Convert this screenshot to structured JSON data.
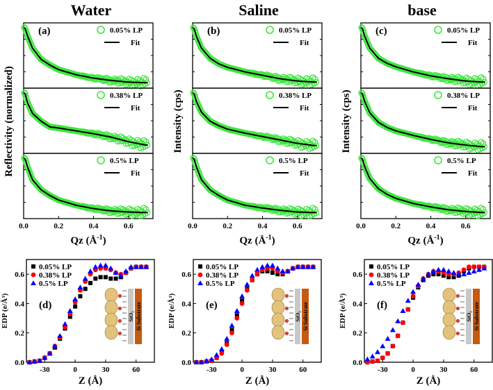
{
  "colors": {
    "green": "#3ee63e",
    "fit": "#000000",
    "s005": "#000000",
    "s038": "#ff0000",
    "s05": "#0000ff",
    "film": "#e3c37b",
    "oxide": "#c8c8c8",
    "substrate": "#c55a11"
  },
  "chart_data": [
    {
      "type": "scatter",
      "id": "reflectivity",
      "column_titles": [
        "Water",
        "Saline",
        "base"
      ],
      "panel_labels": [
        "(a)",
        "(b)",
        "(c)"
      ],
      "ylabels": [
        "Reflectivity (normalized)",
        "Intensity (cps)",
        "Intensity (cps)"
      ],
      "xlabel": "Qz (Å⁻¹)",
      "xlim": [
        0.0,
        0.74
      ],
      "xticks": [
        "0.0",
        "0.2",
        "0.4",
        "0.6"
      ],
      "fit_label": "Fit",
      "stacked_curves": [
        "0.05% LP",
        "0.38% LP",
        "0.5% LP"
      ],
      "series": [
        {
          "name": "0.05% LP",
          "column": "Water",
          "x": [
            0.0,
            0.01,
            0.02,
            0.05,
            0.1,
            0.15,
            0.2,
            0.3,
            0.4,
            0.5,
            0.6,
            0.7
          ],
          "y": [
            1.0,
            0.95,
            0.85,
            0.62,
            0.42,
            0.32,
            0.24,
            0.15,
            0.09,
            0.05,
            0.02,
            0.01
          ]
        },
        {
          "name": "0.38% LP",
          "column": "Water",
          "x": [
            0.0,
            0.01,
            0.02,
            0.05,
            0.1,
            0.15,
            0.2,
            0.3,
            0.4,
            0.5,
            0.6,
            0.7
          ],
          "y": [
            1.0,
            0.95,
            0.82,
            0.62,
            0.48,
            0.38,
            0.36,
            0.31,
            0.26,
            0.2,
            0.12,
            0.06
          ]
        },
        {
          "name": "0.5% LP",
          "column": "Water",
          "x": [
            0.0,
            0.01,
            0.02,
            0.05,
            0.1,
            0.15,
            0.2,
            0.3,
            0.4,
            0.5,
            0.6,
            0.7
          ],
          "y": [
            1.0,
            0.95,
            0.84,
            0.6,
            0.42,
            0.32,
            0.24,
            0.15,
            0.09,
            0.05,
            0.03,
            0.02
          ]
        },
        {
          "name": "0.05% LP",
          "column": "Saline",
          "x": [
            0.0,
            0.01,
            0.02,
            0.05,
            0.1,
            0.15,
            0.2,
            0.3,
            0.4,
            0.5,
            0.6,
            0.7
          ],
          "y": [
            1.0,
            0.95,
            0.84,
            0.62,
            0.44,
            0.34,
            0.28,
            0.2,
            0.14,
            0.08,
            0.04,
            0.02
          ]
        },
        {
          "name": "0.38% LP",
          "column": "Saline",
          "x": [
            0.0,
            0.01,
            0.02,
            0.05,
            0.1,
            0.15,
            0.2,
            0.3,
            0.4,
            0.5,
            0.6,
            0.7
          ],
          "y": [
            1.0,
            0.95,
            0.84,
            0.64,
            0.48,
            0.4,
            0.34,
            0.27,
            0.21,
            0.15,
            0.09,
            0.05
          ]
        },
        {
          "name": "0.5% LP",
          "column": "Saline",
          "x": [
            0.0,
            0.01,
            0.02,
            0.05,
            0.1,
            0.15,
            0.2,
            0.3,
            0.4,
            0.5,
            0.6,
            0.7
          ],
          "y": [
            1.0,
            0.95,
            0.84,
            0.6,
            0.42,
            0.32,
            0.24,
            0.15,
            0.1,
            0.06,
            0.03,
            0.02
          ]
        },
        {
          "name": "0.05% LP",
          "column": "base",
          "x": [
            0.0,
            0.01,
            0.02,
            0.05,
            0.1,
            0.15,
            0.2,
            0.3,
            0.4,
            0.5,
            0.6,
            0.7
          ],
          "y": [
            1.0,
            0.95,
            0.84,
            0.62,
            0.44,
            0.35,
            0.29,
            0.2,
            0.13,
            0.08,
            0.04,
            0.02
          ]
        },
        {
          "name": "0.38% LP",
          "column": "base",
          "x": [
            0.0,
            0.01,
            0.02,
            0.05,
            0.1,
            0.15,
            0.2,
            0.3,
            0.4,
            0.5,
            0.6,
            0.7
          ],
          "y": [
            1.0,
            0.95,
            0.84,
            0.63,
            0.46,
            0.37,
            0.31,
            0.23,
            0.16,
            0.1,
            0.06,
            0.03
          ]
        },
        {
          "name": "0.5% LP",
          "column": "base",
          "x": [
            0.0,
            0.01,
            0.02,
            0.05,
            0.1,
            0.15,
            0.2,
            0.3,
            0.4,
            0.5,
            0.6,
            0.7
          ],
          "y": [
            1.0,
            0.95,
            0.84,
            0.62,
            0.44,
            0.34,
            0.27,
            0.18,
            0.12,
            0.07,
            0.04,
            0.02
          ]
        }
      ]
    },
    {
      "type": "scatter",
      "id": "edp",
      "panel_labels": [
        "(d)",
        "(e)",
        "(f)"
      ],
      "ylabel": "EDP (e/Å³)",
      "xlabel": "Z (Å)",
      "xlim": [
        -48,
        78
      ],
      "ylim": [
        0.0,
        0.7
      ],
      "xticks": [
        -30,
        0,
        30,
        60
      ],
      "yticks": [
        "0.0",
        "0.2",
        "0.4",
        "0.6"
      ],
      "legend": [
        "0.05% LP",
        "0.38% LP",
        "0.5% LP"
      ],
      "inset_labels": {
        "oxide": "SiO₂",
        "substrate": "Si Substrate"
      },
      "x": [
        -45,
        -40,
        -35,
        -30,
        -25,
        -20,
        -15,
        -10,
        -5,
        0,
        5,
        10,
        15,
        20,
        25,
        30,
        35,
        40,
        45,
        50,
        55,
        60,
        65,
        70
      ],
      "panels": [
        {
          "series": [
            {
              "name": "0.05% LP",
              "values": [
                0.0,
                0.005,
                0.01,
                0.03,
                0.06,
                0.1,
                0.16,
                0.23,
                0.31,
                0.38,
                0.45,
                0.5,
                0.54,
                0.57,
                0.58,
                0.58,
                0.57,
                0.57,
                0.58,
                0.61,
                0.64,
                0.65,
                0.65,
                0.65
              ]
            },
            {
              "name": "0.38% LP",
              "values": [
                0.0,
                0.005,
                0.01,
                0.03,
                0.06,
                0.11,
                0.17,
                0.24,
                0.33,
                0.41,
                0.49,
                0.55,
                0.6,
                0.63,
                0.64,
                0.64,
                0.63,
                0.61,
                0.6,
                0.61,
                0.64,
                0.65,
                0.65,
                0.65
              ]
            },
            {
              "name": "0.5% LP",
              "values": [
                0.0,
                0.005,
                0.01,
                0.03,
                0.06,
                0.11,
                0.18,
                0.26,
                0.35,
                0.43,
                0.51,
                0.57,
                0.62,
                0.65,
                0.66,
                0.66,
                0.64,
                0.61,
                0.59,
                0.62,
                0.65,
                0.65,
                0.65,
                0.65
              ]
            }
          ]
        },
        {
          "series": [
            {
              "name": "0.05% LP",
              "values": [
                0.0,
                0.0,
                0.005,
                0.01,
                0.03,
                0.07,
                0.13,
                0.22,
                0.32,
                0.42,
                0.5,
                0.56,
                0.6,
                0.62,
                0.62,
                0.61,
                0.6,
                0.6,
                0.62,
                0.64,
                0.65,
                0.65,
                0.65,
                0.65
              ]
            },
            {
              "name": "0.38% LP",
              "values": [
                0.0,
                0.0,
                0.005,
                0.01,
                0.03,
                0.06,
                0.12,
                0.2,
                0.3,
                0.4,
                0.49,
                0.56,
                0.6,
                0.63,
                0.64,
                0.64,
                0.62,
                0.61,
                0.62,
                0.64,
                0.65,
                0.65,
                0.65,
                0.65
              ]
            },
            {
              "name": "0.5% LP",
              "values": [
                0.0,
                0.0,
                0.01,
                0.02,
                0.05,
                0.09,
                0.16,
                0.25,
                0.35,
                0.45,
                0.53,
                0.59,
                0.63,
                0.65,
                0.66,
                0.66,
                0.64,
                0.62,
                0.62,
                0.64,
                0.65,
                0.65,
                0.65,
                0.65
              ]
            }
          ]
        },
        {
          "series": [
            {
              "name": "0.05% LP",
              "values": [
                0.0,
                0.005,
                0.01,
                0.03,
                0.06,
                0.11,
                0.18,
                0.27,
                0.36,
                0.44,
                0.51,
                0.56,
                0.59,
                0.6,
                0.6,
                0.59,
                0.58,
                0.58,
                0.59,
                0.62,
                0.64,
                0.65,
                0.65,
                0.65
              ]
            },
            {
              "name": "0.38% LP",
              "values": [
                0.0,
                0.005,
                0.01,
                0.03,
                0.06,
                0.11,
                0.18,
                0.27,
                0.36,
                0.45,
                0.52,
                0.57,
                0.6,
                0.62,
                0.62,
                0.61,
                0.6,
                0.6,
                0.61,
                0.63,
                0.65,
                0.65,
                0.65,
                0.65
              ]
            },
            {
              "name": "0.5% LP",
              "values": [
                0.02,
                0.04,
                0.07,
                0.11,
                0.16,
                0.22,
                0.28,
                0.35,
                0.42,
                0.48,
                0.53,
                0.57,
                0.6,
                0.62,
                0.63,
                0.63,
                0.62,
                0.61,
                0.6,
                0.6,
                0.61,
                0.62,
                0.63,
                0.64
              ]
            }
          ]
        }
      ]
    }
  ]
}
